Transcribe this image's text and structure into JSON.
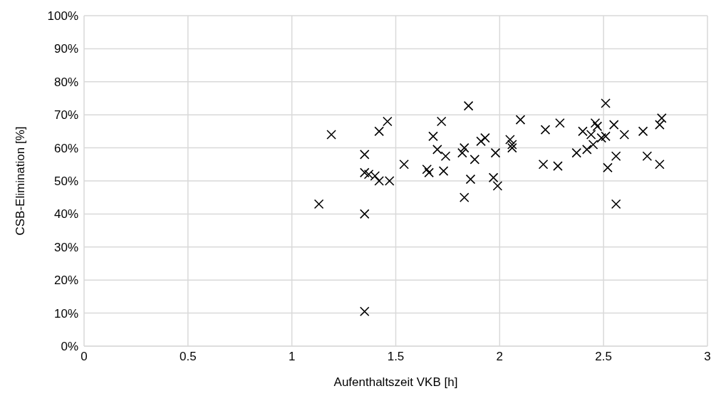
{
  "chart_data": {
    "type": "scatter",
    "xlabel": "Aufenthaltszeit VKB [h]",
    "ylabel": "CSB-Elimination [%]",
    "marker": "cross",
    "grid": true,
    "xlim": [
      0,
      3
    ],
    "xticks": [
      0,
      0.5,
      1,
      1.5,
      2,
      2.5,
      3
    ],
    "ylim": [
      0,
      100
    ],
    "yticks": [
      {
        "value": 0,
        "label": "0%"
      },
      {
        "value": 10,
        "label": "10%"
      },
      {
        "value": 20,
        "label": "20%"
      },
      {
        "value": 30,
        "label": "30%"
      },
      {
        "value": 40,
        "label": "40%"
      },
      {
        "value": 50,
        "label": "50%"
      },
      {
        "value": 60,
        "label": "60%"
      },
      {
        "value": 70,
        "label": "70%"
      },
      {
        "value": 80,
        "label": "80%"
      },
      {
        "value": 90,
        "label": "90%"
      },
      {
        "value": 100,
        "label": "100%"
      }
    ],
    "x": [
      1.13,
      1.19,
      1.35,
      1.35,
      1.35,
      1.35,
      1.37,
      1.4,
      1.42,
      1.42,
      1.46,
      1.47,
      1.54,
      1.65,
      1.66,
      1.68,
      1.7,
      1.72,
      1.73,
      1.74,
      1.82,
      1.83,
      1.83,
      1.85,
      1.86,
      1.88,
      1.91,
      1.93,
      1.97,
      1.98,
      1.99,
      2.05,
      2.06,
      2.06,
      2.1,
      2.21,
      2.22,
      2.28,
      2.29,
      2.37,
      2.4,
      2.42,
      2.44,
      2.45,
      2.46,
      2.47,
      2.49,
      2.51,
      2.51,
      2.52,
      2.55,
      2.56,
      2.56,
      2.6,
      2.69,
      2.71,
      2.77,
      2.77,
      2.78
    ],
    "series": [
      {
        "color": "#000000",
        "values": [
          43,
          64,
          10.5,
          40,
          58,
          52.5,
          52,
          51.5,
          65,
          50,
          68,
          50,
          55,
          53.5,
          52.5,
          63.5,
          59.5,
          68,
          53,
          57.5,
          58.5,
          60,
          45,
          72.7,
          50.5,
          56.5,
          62,
          63,
          51,
          58.5,
          48.5,
          62.5,
          61,
          60,
          68.5,
          55,
          65.5,
          54.5,
          67.5,
          58.5,
          65,
          59.5,
          64,
          61,
          67.5,
          66.5,
          63,
          73.5,
          63.5,
          54,
          67,
          57.5,
          43,
          64,
          65,
          57.5,
          67,
          55,
          69
        ]
      }
    ]
  }
}
